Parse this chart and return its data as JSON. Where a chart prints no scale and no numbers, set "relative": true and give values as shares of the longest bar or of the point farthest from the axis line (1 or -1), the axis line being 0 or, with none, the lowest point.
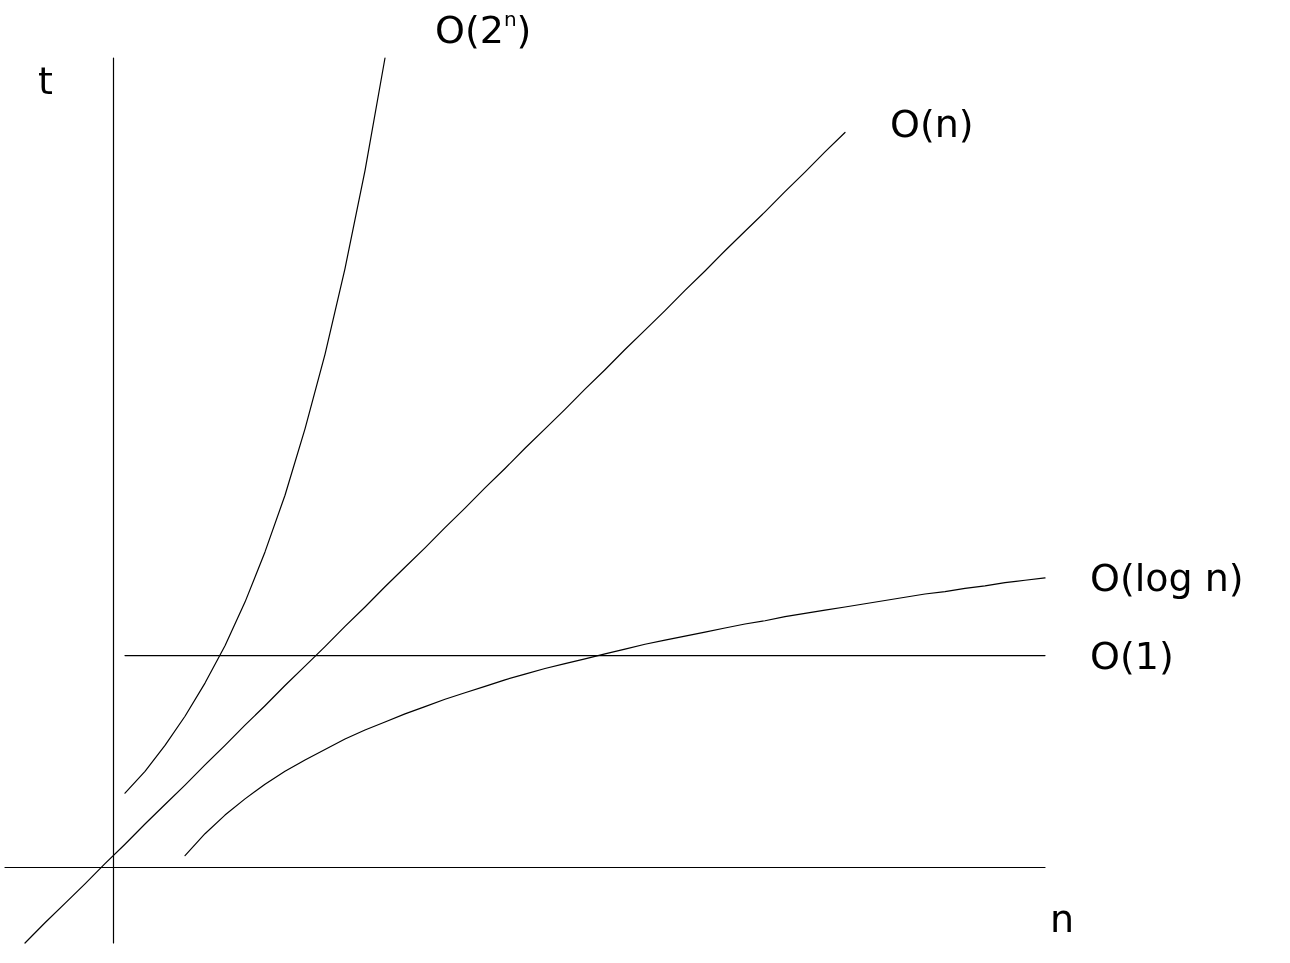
{
  "chart_data": {
    "type": "line",
    "relative": true,
    "xlabel": "n",
    "ylabel": "t",
    "marker": "none",
    "categories": [
      null,
      null,
      null,
      null,
      null,
      null,
      null,
      null,
      null,
      null,
      null,
      null,
      null,
      null,
      null,
      null,
      null,
      null,
      null,
      null,
      null,
      null,
      null,
      null,
      null,
      null,
      null,
      null,
      null,
      null,
      null,
      null,
      null,
      null,
      null,
      null,
      null,
      null,
      null,
      null,
      null,
      null,
      null,
      null,
      null,
      null,
      null,
      null,
      null,
      null,
      null,
      null,
      null
    ],
    "series": [
      {
        "name": "O(2$^{n}$)",
        "color": "#000000",
        "values": [
          null,
          null,
          null,
          null,
          null,
          null,
          0.092,
          0.119,
          0.151,
          0.187,
          0.228,
          0.274,
          0.328,
          0.39,
          0.46,
          0.542,
          0.634,
          0.74,
          0.861,
          1,
          null,
          null,
          null,
          null,
          null,
          null,
          null,
          null,
          null,
          null,
          null,
          null,
          null,
          null,
          null,
          null,
          null,
          null,
          null,
          null,
          null,
          null,
          null,
          null,
          null,
          null,
          null,
          null,
          null,
          null,
          null,
          null,
          null
        ]
      },
      {
        "name": "O(n)",
        "color": "#000000",
        "values": [
          null,
          -0.093,
          -0.068,
          -0.044,
          -0.02,
          0.005,
          0.029,
          0.054,
          0.078,
          0.102,
          0.127,
          0.151,
          0.176,
          0.2,
          0.225,
          0.249,
          0.273,
          0.298,
          0.322,
          0.347,
          0.371,
          0.395,
          0.42,
          0.444,
          0.469,
          0.493,
          0.518,
          0.542,
          0.566,
          0.591,
          0.615,
          0.64,
          0.664,
          0.688,
          0.713,
          0.737,
          0.762,
          0.786,
          0.81,
          0.835,
          0.859,
          0.884,
          0.908,
          null,
          null,
          null,
          null,
          null,
          null,
          null,
          null,
          null,
          null
        ]
      },
      {
        "name": "O(log n)",
        "color": "#000000",
        "values": [
          null,
          null,
          null,
          null,
          null,
          null,
          null,
          null,
          null,
          0.015,
          0.042,
          0.065,
          0.085,
          0.103,
          0.119,
          0.133,
          0.146,
          0.159,
          0.17,
          0.18,
          0.19,
          0.199,
          0.208,
          0.216,
          0.224,
          0.232,
          0.239,
          0.246,
          0.252,
          0.258,
          0.264,
          0.27,
          0.276,
          0.281,
          0.286,
          0.291,
          0.296,
          0.301,
          0.305,
          0.31,
          0.314,
          0.318,
          0.322,
          0.326,
          0.33,
          0.334,
          0.338,
          0.341,
          0.345,
          0.348,
          0.352,
          0.355,
          0.358
        ]
      },
      {
        "name": "O(1)",
        "color": "#000000",
        "values": [
          null,
          null,
          null,
          null,
          null,
          null,
          0.262,
          0.262,
          0.262,
          0.262,
          0.262,
          0.262,
          0.262,
          0.262,
          0.262,
          0.262,
          0.262,
          0.262,
          0.262,
          0.262,
          0.262,
          0.262,
          0.262,
          0.262,
          0.262,
          0.262,
          0.262,
          0.262,
          0.262,
          0.262,
          0.262,
          0.262,
          0.262,
          0.262,
          0.262,
          0.262,
          0.262,
          0.262,
          0.262,
          0.262,
          0.262,
          0.262,
          0.262,
          0.262,
          0.262,
          0.262,
          0.262,
          0.262,
          0.262,
          0.262,
          0.262,
          0.262,
          0.262
        ]
      }
    ]
  }
}
